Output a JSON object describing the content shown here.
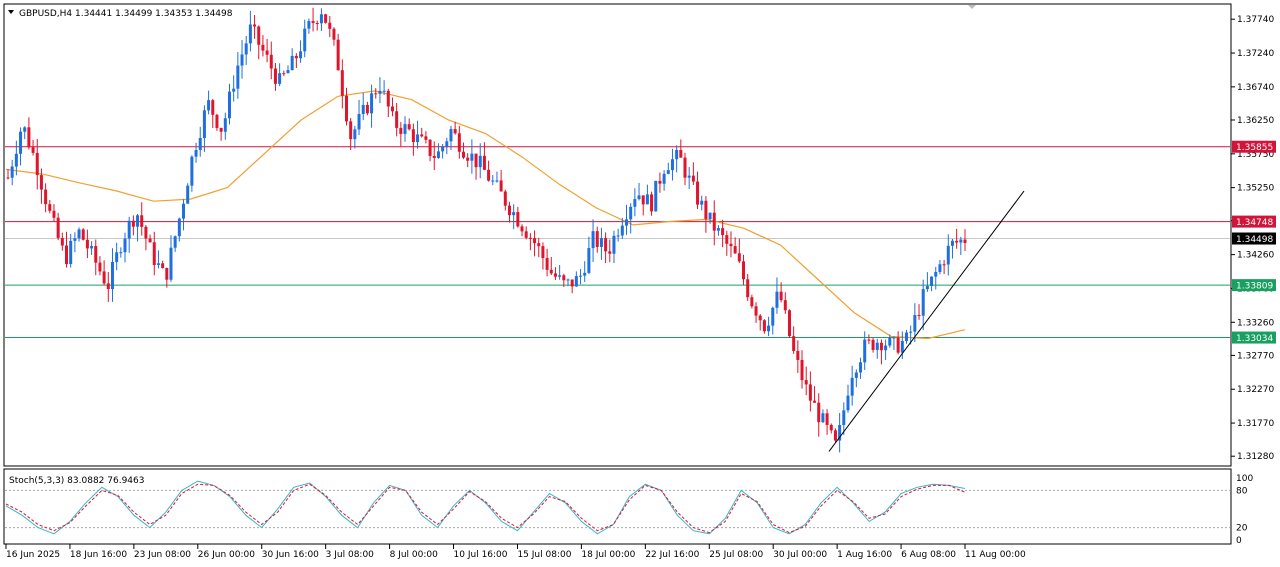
{
  "header": {
    "symbol_line": "GBPUSD,H4  1.34441 1.34499 1.34353 1.34498"
  },
  "indicator": {
    "label": "Stoch(5,3,3) 83.0882 76.9463",
    "levels": [
      "100",
      "80",
      "20",
      "0"
    ]
  },
  "colors": {
    "bull": "#1e6fe0",
    "bear": "#e0142b",
    "ma": "#f0a030",
    "stoch_main": "#36b6c8",
    "stoch_signal": "#e0142b",
    "resistance": "#d0143a",
    "support": "#18a060",
    "current": "#000000"
  },
  "chart_data": {
    "type": "candlestick",
    "price_axis": {
      "ticks": [
        "1.37740",
        "1.37240",
        "1.36740",
        "1.36250",
        "1.35750",
        "1.35250",
        "1.34760",
        "1.34260",
        "1.33760",
        "1.33260",
        "1.32770",
        "1.32270",
        "1.31770",
        "1.31280"
      ],
      "range": [
        1.3115,
        1.3795
      ]
    },
    "time_axis": {
      "labels": [
        "16 Jun 2025",
        "18 Jun 16:00",
        "23 Jun 08:00",
        "26 Jun 00:00",
        "30 Jun 16:00",
        "3 Jul 08:00",
        "8 Jul 00:00",
        "10 Jul 16:00",
        "15 Jul 08:00",
        "18 Jul 00:00",
        "22 Jul 16:00",
        "25 Jul 08:00",
        "30 Jul 00:00",
        "1 Aug 16:00",
        "6 Aug 08:00",
        "11 Aug 00:00"
      ]
    },
    "horizontal_levels": [
      {
        "value": 1.35855,
        "label": "1.35855",
        "kind": "resistance"
      },
      {
        "value": 1.34748,
        "label": "1.34748",
        "kind": "resistance"
      },
      {
        "value": 1.34498,
        "label": "1.34498",
        "kind": "current"
      },
      {
        "value": 1.33809,
        "label": "1.33809",
        "kind": "support"
      },
      {
        "value": 1.33034,
        "label": "1.33034",
        "kind": "support"
      }
    ],
    "trendline": {
      "from": [
        1.3135,
        0.84
      ],
      "to": [
        1.352,
        1.0
      ]
    },
    "price_path": [
      1.354,
      1.362,
      1.356,
      1.348,
      1.342,
      1.346,
      1.342,
      1.338,
      1.345,
      1.349,
      1.343,
      1.339,
      1.348,
      1.358,
      1.365,
      1.361,
      1.37,
      1.376,
      1.372,
      1.368,
      1.371,
      1.376,
      1.379,
      1.372,
      1.36,
      1.364,
      1.368,
      1.362,
      1.361,
      1.359,
      1.357,
      1.361,
      1.358,
      1.356,
      1.353,
      1.35,
      1.347,
      1.344,
      1.34,
      1.338,
      1.339,
      1.345,
      1.343,
      1.348,
      1.352,
      1.35,
      1.356,
      1.357,
      1.352,
      1.348,
      1.345,
      1.342,
      1.336,
      1.332,
      1.337,
      1.328,
      1.322,
      1.318,
      1.314,
      1.325,
      1.329,
      1.33,
      1.329,
      1.33,
      1.336,
      1.34,
      1.344,
      1.3449
    ],
    "ma_path": [
      1.3552,
      1.3545,
      1.3532,
      1.352,
      1.3505,
      1.3508,
      1.3525,
      1.3575,
      1.3625,
      1.366,
      1.3668,
      1.3655,
      1.3625,
      1.3605,
      1.357,
      1.353,
      1.3495,
      1.347,
      1.3475,
      1.3478,
      1.3465,
      1.344,
      1.339,
      1.334,
      1.3305,
      1.3302,
      1.3315
    ],
    "stoch_main": [
      55,
      40,
      20,
      10,
      30,
      60,
      85,
      70,
      40,
      20,
      45,
      80,
      95,
      88,
      70,
      40,
      20,
      50,
      85,
      92,
      70,
      40,
      20,
      60,
      88,
      80,
      40,
      20,
      55,
      80,
      60,
      30,
      15,
      45,
      75,
      60,
      30,
      10,
      25,
      70,
      90,
      80,
      40,
      15,
      10,
      35,
      80,
      60,
      20,
      10,
      25,
      60,
      85,
      60,
      30,
      45,
      75,
      85,
      90,
      88,
      83
    ],
    "stoch_signal": [
      58,
      45,
      25,
      15,
      28,
      55,
      80,
      72,
      45,
      25,
      40,
      75,
      90,
      88,
      72,
      45,
      25,
      45,
      80,
      90,
      72,
      45,
      25,
      55,
      85,
      80,
      45,
      25,
      50,
      78,
      62,
      35,
      20,
      42,
      70,
      62,
      35,
      15,
      25,
      65,
      88,
      80,
      45,
      20,
      12,
      30,
      75,
      62,
      25,
      12,
      22,
      55,
      80,
      62,
      35,
      42,
      70,
      82,
      88,
      88,
      77
    ]
  }
}
